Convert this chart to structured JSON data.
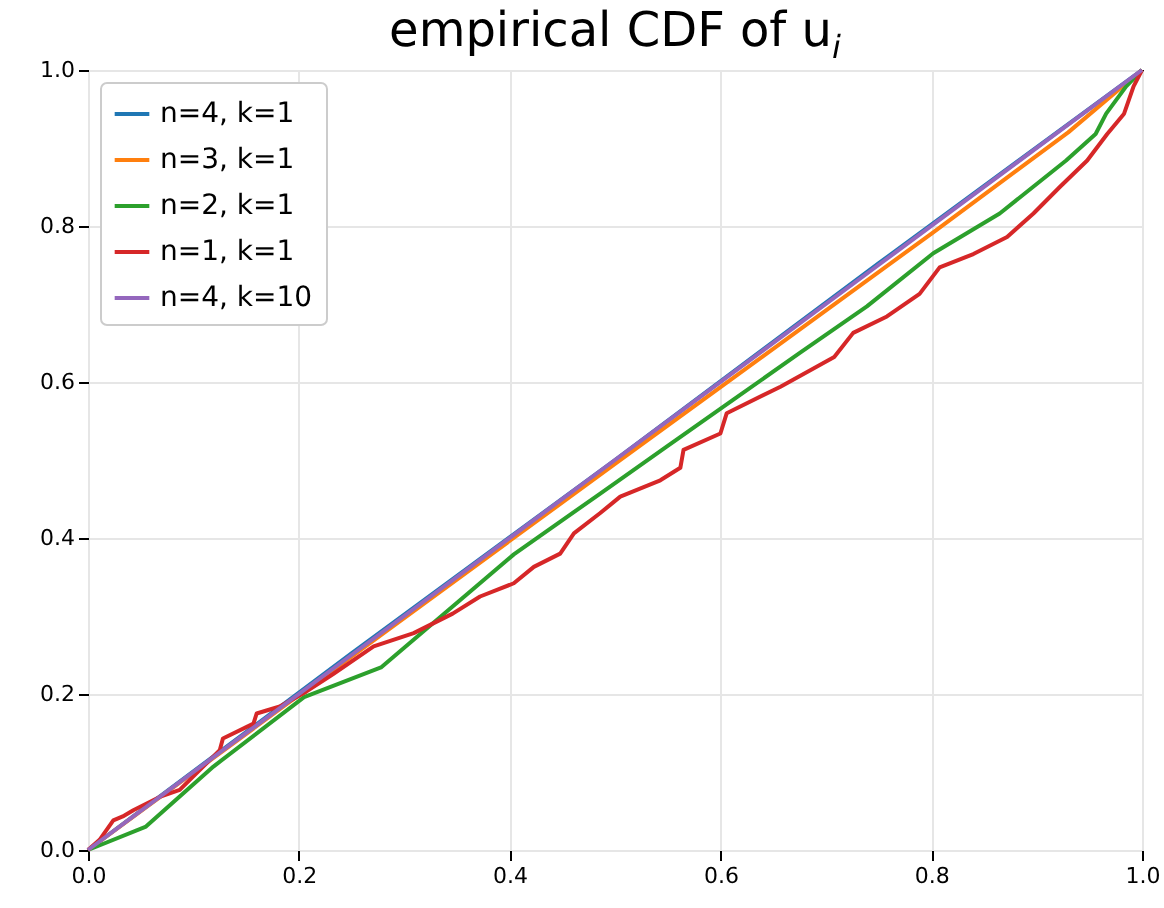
{
  "chart_data": {
    "type": "line",
    "title": "empirical CDF of u$_{i}$",
    "xlim": [
      0,
      1
    ],
    "ylim": [
      0,
      1
    ],
    "xticks": [
      {
        "value": 0,
        "label": "0.0"
      },
      0.2,
      0.4,
      0.6,
      0.8,
      {
        "value": 1,
        "label": "1.0"
      }
    ],
    "yticks": [
      {
        "value": 0,
        "label": "0.0"
      },
      0.2,
      0.4,
      0.6,
      0.8,
      {
        "value": 1,
        "label": "1.0"
      }
    ],
    "grid": true,
    "legend": "top left",
    "series": [
      {
        "name": "n=4, k=1",
        "color": "#1f77b4",
        "x": [
          0,
          0.25,
          0.5,
          0.75,
          1
        ],
        "values": [
          0,
          0.252,
          0.5,
          0.752,
          1
        ]
      },
      {
        "name": "n=3, k=1",
        "color": "#ff7f0e",
        "x": [
          0,
          0.25,
          0.5,
          0.8,
          0.93,
          1
        ],
        "values": [
          0,
          0.248,
          0.495,
          0.79,
          0.92,
          1
        ]
      },
      {
        "name": "n=2, k=1",
        "color": "#2ca02c",
        "x": [
          0,
          0.055,
          0.119,
          0.205,
          0.278,
          0.404,
          0.486,
          0.549,
          0.612,
          0.675,
          0.739,
          0.802,
          0.865,
          0.928,
          0.956,
          0.966,
          0.985,
          1
        ],
        "values": [
          0,
          0.03,
          0.107,
          0.196,
          0.234,
          0.379,
          0.457,
          0.517,
          0.577,
          0.637,
          0.697,
          0.765,
          0.816,
          0.884,
          0.918,
          0.944,
          0.979,
          1
        ]
      },
      {
        "name": "n=1, k=1",
        "color": "#d62728",
        "x": [
          0,
          0.011,
          0.024,
          0.033,
          0.043,
          0.068,
          0.087,
          0.125,
          0.128,
          0.157,
          0.16,
          0.182,
          0.207,
          0.233,
          0.271,
          0.309,
          0.346,
          0.372,
          0.404,
          0.423,
          0.448,
          0.461,
          0.486,
          0.505,
          0.543,
          0.562,
          0.565,
          0.6,
          0.606,
          0.657,
          0.708,
          0.726,
          0.758,
          0.789,
          0.808,
          0.84,
          0.872,
          0.897,
          0.922,
          0.948,
          0.967,
          0.983,
          0.992,
          1
        ],
        "values": [
          0,
          0.013,
          0.038,
          0.043,
          0.051,
          0.068,
          0.077,
          0.128,
          0.143,
          0.162,
          0.175,
          0.184,
          0.203,
          0.226,
          0.261,
          0.278,
          0.303,
          0.325,
          0.342,
          0.363,
          0.38,
          0.406,
          0.432,
          0.453,
          0.474,
          0.49,
          0.513,
          0.534,
          0.56,
          0.594,
          0.632,
          0.663,
          0.684,
          0.713,
          0.747,
          0.764,
          0.786,
          0.816,
          0.85,
          0.884,
          0.918,
          0.944,
          0.979,
          1
        ]
      },
      {
        "name": "n=4, k=10",
        "color": "#9467bd",
        "x": [
          0,
          0.25,
          0.5,
          0.75,
          1
        ],
        "values": [
          0,
          0.25,
          0.5,
          0.75,
          1
        ]
      }
    ]
  }
}
